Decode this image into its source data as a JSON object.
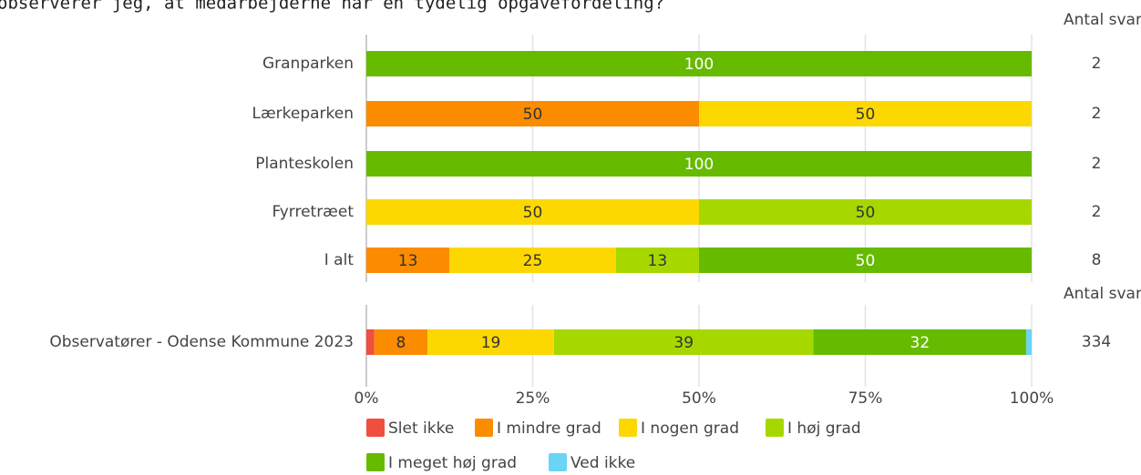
{
  "chart_data": {
    "type": "stacked_bar_horizontal",
    "title": "observerer jeg, at medarbejderne har en tydelig opgavefordeling?",
    "categories": [
      "Granparken",
      "Lærkeparken",
      "Planteskolen",
      "Fyrretræet",
      "I alt",
      "Observatører - Odense Kommune 2023"
    ],
    "series": [
      {
        "name": "Slet ikke",
        "color": "#f04e3e",
        "values": [
          null,
          null,
          null,
          null,
          null,
          1.2
        ],
        "value_labels": [
          null,
          null,
          null,
          null,
          null,
          null
        ]
      },
      {
        "name": "I mindre grad",
        "color": "#fb8c00",
        "values": [
          null,
          50,
          null,
          null,
          12.5,
          8
        ],
        "value_labels": [
          null,
          "50",
          null,
          null,
          "13",
          "8"
        ]
      },
      {
        "name": "I nogen grad",
        "color": "#fdd800",
        "values": [
          null,
          50,
          null,
          50,
          25,
          19
        ],
        "value_labels": [
          null,
          "50",
          null,
          "50",
          "25",
          "19"
        ]
      },
      {
        "name": "I høj grad",
        "color": "#a6d800",
        "values": [
          null,
          null,
          null,
          50,
          12.5,
          39
        ],
        "value_labels": [
          null,
          null,
          null,
          "50",
          "13",
          "39"
        ]
      },
      {
        "name": "I meget høj grad",
        "color": "#66bb00",
        "values": [
          100,
          null,
          100,
          null,
          50,
          32
        ],
        "value_labels": [
          "100",
          null,
          "100",
          null,
          "50",
          "32"
        ]
      },
      {
        "name": "Ved ikke",
        "color": "#6ad4f5",
        "values": [
          null,
          null,
          null,
          null,
          null,
          0.8
        ],
        "value_labels": [
          null,
          null,
          null,
          null,
          null,
          null
        ]
      }
    ],
    "answer_counts": {
      "label": "Antal svar",
      "values": [
        2,
        2,
        2,
        2,
        8,
        334
      ]
    },
    "xlim": [
      0,
      100
    ],
    "xticks": [
      {
        "value": 0,
        "label": "0%"
      },
      {
        "value": 25,
        "label": "25%"
      },
      {
        "value": 50,
        "label": "50%"
      },
      {
        "value": 75,
        "label": "75%"
      },
      {
        "value": 100,
        "label": "100%"
      }
    ],
    "grid": true
  }
}
